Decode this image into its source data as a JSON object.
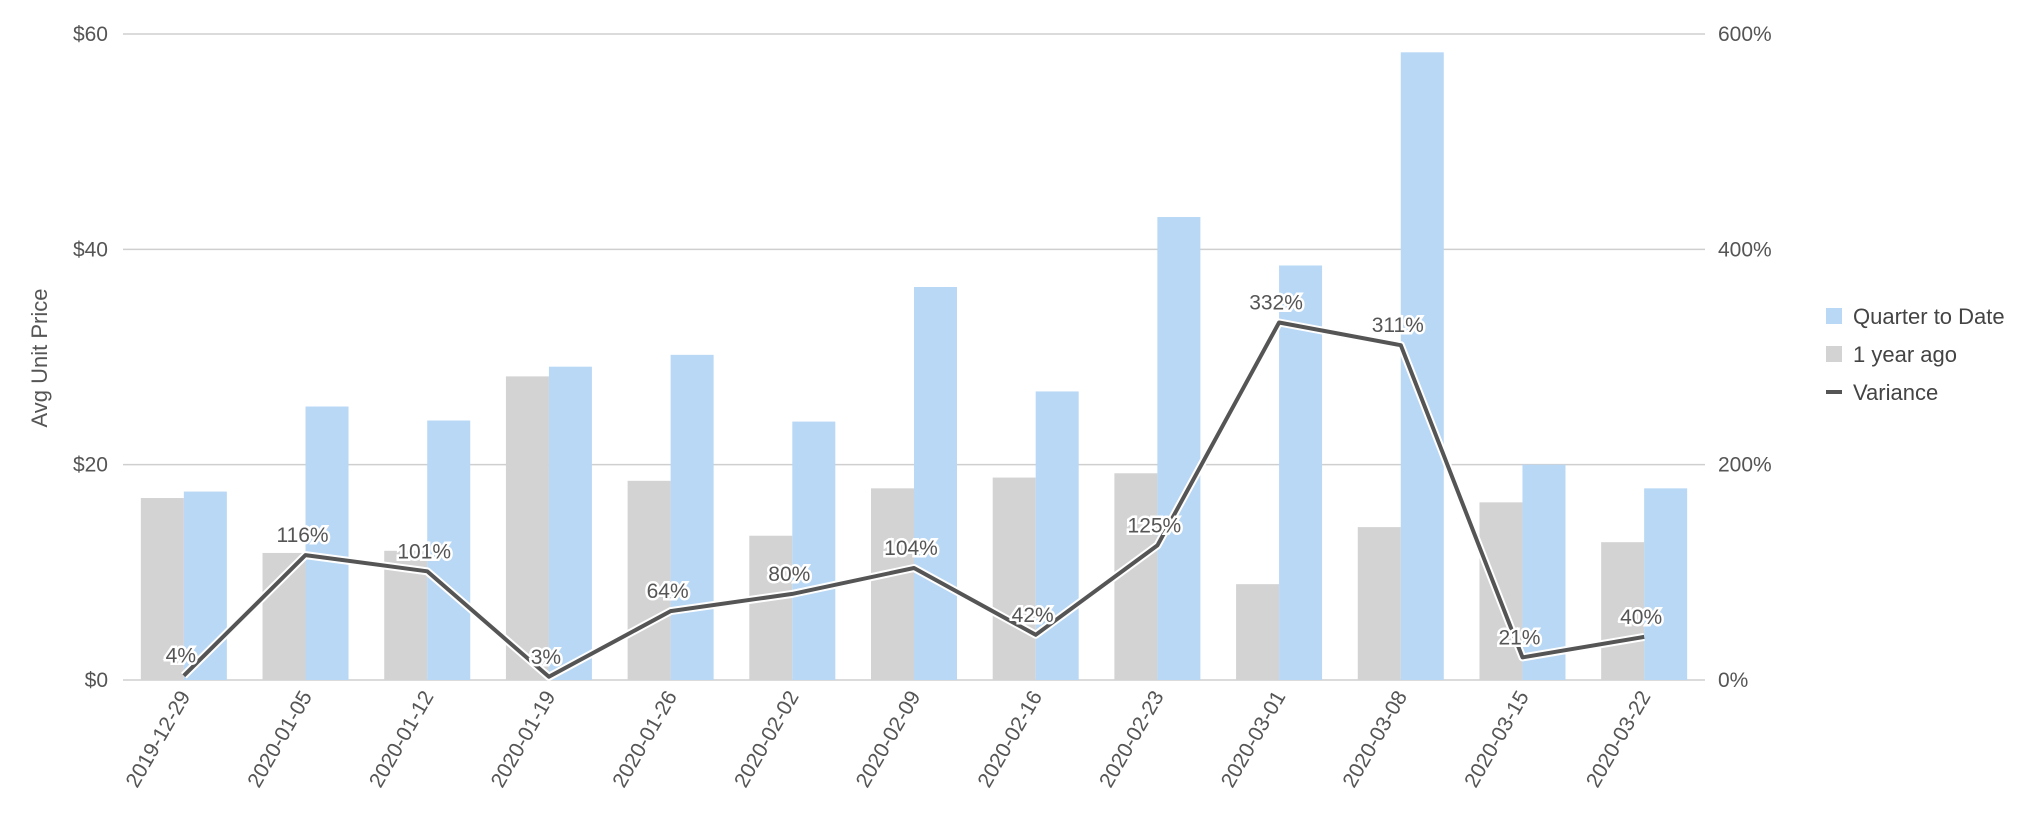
{
  "chart_data": {
    "type": "bar",
    "categories": [
      "2019-12-29",
      "2020-01-05",
      "2020-01-12",
      "2020-01-19",
      "2020-01-26",
      "2020-02-02",
      "2020-02-09",
      "2020-02-16",
      "2020-02-23",
      "2020-03-01",
      "2020-03-08",
      "2020-03-15",
      "2020-03-22"
    ],
    "series": [
      {
        "name": "Quarter to Date",
        "kind": "bar",
        "axis": "left",
        "color": "#b8d8f5",
        "values": [
          17.5,
          25.4,
          24.1,
          29.1,
          30.2,
          24.0,
          36.5,
          26.8,
          43.0,
          38.5,
          58.3,
          20.0,
          17.8
        ]
      },
      {
        "name": "1 year ago",
        "kind": "bar",
        "axis": "left",
        "color": "#d3d3d3",
        "values": [
          16.9,
          11.8,
          12.0,
          28.2,
          18.5,
          13.4,
          17.8,
          18.8,
          19.2,
          8.9,
          14.2,
          16.5,
          12.8
        ]
      },
      {
        "name": "Variance",
        "kind": "line",
        "axis": "right",
        "color": "#555555",
        "values": [
          4,
          116,
          101,
          3,
          64,
          80,
          104,
          42,
          125,
          332,
          311,
          21,
          40
        ],
        "labels": [
          "4%",
          "116%",
          "101%",
          "3%",
          "64%",
          "80%",
          "104%",
          "42%",
          "125%",
          "332%",
          "311%",
          "21%",
          "40%"
        ]
      }
    ],
    "ylabel": "Avg Unit Price",
    "xlabel": "",
    "ylim": [
      0,
      60
    ],
    "y_ticks": [
      "$0",
      "$20",
      "$40",
      "$60"
    ],
    "y2lim": [
      0,
      600
    ],
    "y2_ticks": [
      "0%",
      "200%",
      "400%",
      "600%"
    ],
    "grid": true,
    "legend_position": "right"
  }
}
